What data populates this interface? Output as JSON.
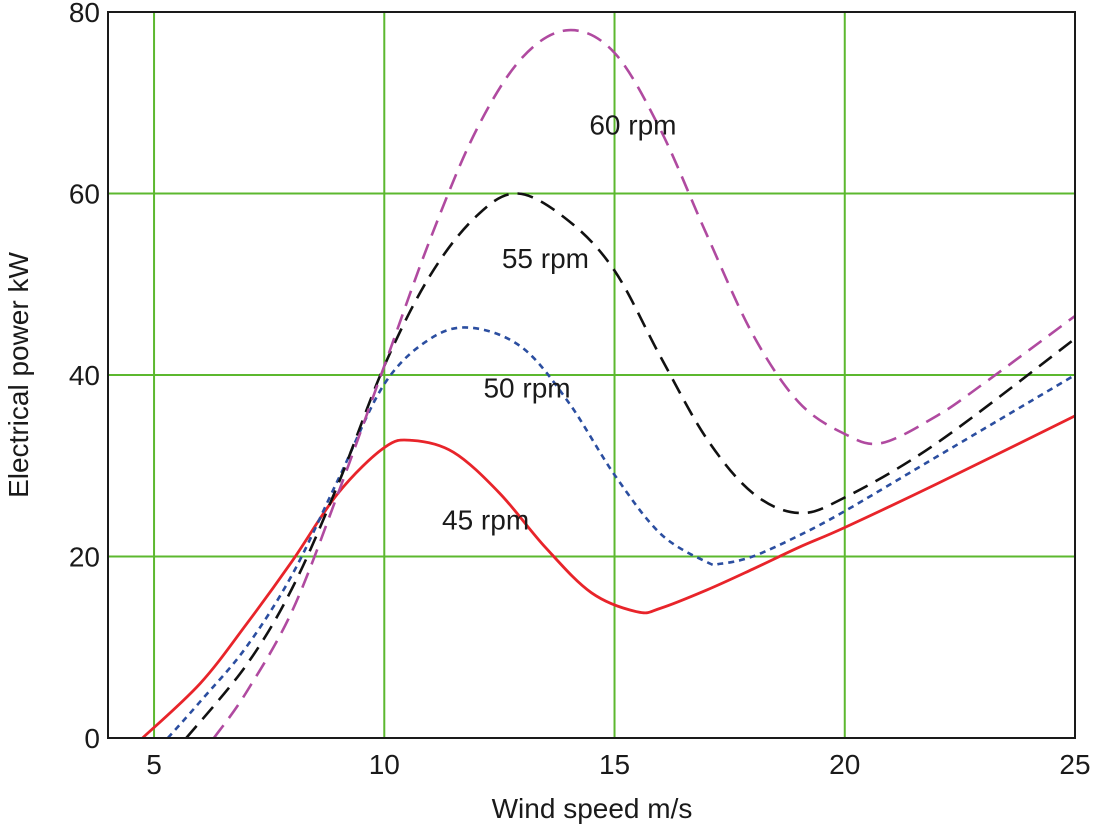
{
  "chart_data": {
    "type": "line",
    "title": "",
    "xlabel": "Wind speed m/s",
    "ylabel": "Electrical power kW",
    "xlim": [
      4,
      25
    ],
    "ylim": [
      0,
      80
    ],
    "xticks": [
      5,
      10,
      15,
      20,
      25
    ],
    "yticks": [
      0,
      20,
      40,
      60,
      80
    ],
    "grid": true,
    "colors": {
      "grid": "#5cb82f",
      "frame": "#1a1a1a"
    },
    "series": [
      {
        "name": "45 rpm",
        "color": "#e8242a",
        "style": "solid",
        "x": [
          4.75,
          6,
          7,
          8,
          9,
          10,
          10.6,
          11.5,
          12.5,
          13.5,
          14.5,
          15.5,
          16,
          17,
          18,
          19,
          20,
          22,
          25
        ],
        "y": [
          0,
          6,
          12.5,
          19.5,
          27,
          32,
          32.8,
          31.5,
          27,
          21,
          16,
          13.9,
          14.3,
          16.3,
          18.6,
          21,
          23.2,
          28,
          35.5
        ],
        "label_at": [
          12.2,
          23
        ]
      },
      {
        "name": "50 rpm",
        "color": "#2b4ea0",
        "style": "dotted",
        "x": [
          5.3,
          6,
          7,
          8,
          9,
          10,
          11,
          11.9,
          13,
          14,
          15,
          16,
          17,
          17.3,
          18,
          19,
          20,
          22,
          25
        ],
        "y": [
          0,
          4,
          10,
          18,
          28.5,
          39,
          44,
          45.2,
          43,
          37,
          29,
          22.5,
          19.4,
          19.2,
          20,
          22.3,
          25,
          31,
          40
        ],
        "label_at": [
          13.1,
          37.5
        ]
      },
      {
        "name": "55 rpm",
        "color": "#111111",
        "style": "dashed",
        "x": [
          5.7,
          7,
          8,
          9,
          10,
          11,
          12,
          12.9,
          14,
          15,
          16,
          17,
          18,
          19,
          20,
          22,
          25
        ],
        "y": [
          0,
          8,
          16.5,
          28,
          41,
          51,
          57.5,
          60,
          57,
          51.5,
          42,
          33,
          27,
          24.8,
          26.5,
          32.5,
          44
        ],
        "label_at": [
          13.5,
          51.8
        ]
      },
      {
        "name": "60 rpm",
        "color": "#b04aa0",
        "style": "dashed",
        "x": [
          6.3,
          7,
          8,
          9,
          10,
          11,
          12,
          13,
          14,
          15,
          16,
          17,
          18,
          19,
          20,
          20.8,
          22,
          23,
          25
        ],
        "y": [
          0,
          5,
          14,
          27,
          41,
          55,
          67,
          75,
          78,
          75.5,
          67,
          55.5,
          44.5,
          37,
          33.5,
          32.5,
          35.5,
          39,
          46.5
        ],
        "label_at": [
          15.4,
          66.5
        ]
      }
    ]
  }
}
